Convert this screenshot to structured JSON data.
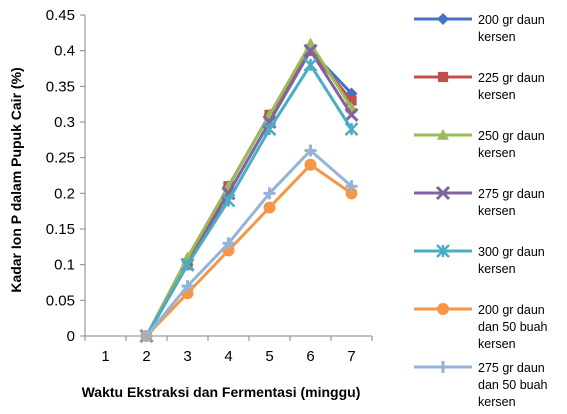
{
  "chart_data": {
    "type": "line",
    "xlabel": "Waktu Ekstraksi dan Fermentasi (minggu)",
    "ylabel": "Kadar Ion P dalam Pupuk Cair (%)",
    "x": [
      1,
      2,
      3,
      4,
      5,
      6,
      7
    ],
    "x_ticks": [
      "1",
      "2",
      "3",
      "4",
      "5",
      "6",
      "7"
    ],
    "ylim": [
      0,
      0.45
    ],
    "y_ticks": [
      "0",
      "0.05",
      "0.1",
      "0.15",
      "0.2",
      "0.25",
      "0.3",
      "0.35",
      "0.4",
      "0.45"
    ],
    "grid": false,
    "legend_position": "right",
    "series": [
      {
        "name": "200 gr daun kersen",
        "label_lines": [
          "200 gr daun",
          "kersen"
        ],
        "color": "#4472c4",
        "marker": "diamond",
        "x": [
          2,
          3,
          4,
          5,
          6,
          7
        ],
        "values": [
          0,
          0.1,
          0.21,
          0.31,
          0.4,
          0.34
        ]
      },
      {
        "name": "225 gr daun kersen",
        "label_lines": [
          "225 gr daun",
          "kersen"
        ],
        "color": "#c0504d",
        "marker": "square",
        "x": [
          2,
          3,
          4,
          5,
          6,
          7
        ],
        "values": [
          0,
          0.1,
          0.21,
          0.31,
          0.4,
          0.33
        ]
      },
      {
        "name": "250 gr daun kersen",
        "label_lines": [
          "250 gr daun",
          "kersen"
        ],
        "color": "#9bbb59",
        "marker": "triangle",
        "x": [
          2,
          3,
          4,
          5,
          6,
          7
        ],
        "values": [
          0,
          0.11,
          0.21,
          0.31,
          0.41,
          0.32
        ]
      },
      {
        "name": "275 gr daun kersen",
        "label_lines": [
          "275 gr daun",
          "kersen"
        ],
        "color": "#8064a2",
        "marker": "x",
        "x": [
          2,
          3,
          4,
          5,
          6,
          7
        ],
        "values": [
          0,
          0.1,
          0.2,
          0.3,
          0.4,
          0.31
        ]
      },
      {
        "name": "300 gr daun kersen",
        "label_lines": [
          "300 gr daun",
          "kersen"
        ],
        "color": "#4bacc6",
        "marker": "star",
        "x": [
          2,
          3,
          4,
          5,
          6,
          7
        ],
        "values": [
          0,
          0.1,
          0.19,
          0.29,
          0.38,
          0.29
        ]
      },
      {
        "name": "200 gr daun dan 50 buah kersen",
        "label_lines": [
          "200 gr daun",
          "dan 50 buah",
          "kersen"
        ],
        "color": "#f79646",
        "marker": "circle",
        "x": [
          2,
          3,
          4,
          5,
          6,
          7
        ],
        "values": [
          0,
          0.06,
          0.12,
          0.18,
          0.24,
          0.2
        ]
      },
      {
        "name": "275 gr daun dan 50 buah kersen",
        "label_lines": [
          "275 gr daun",
          "dan 50 buah",
          "kersen"
        ],
        "color": "#95b3d7",
        "marker": "plus",
        "x": [
          2,
          3,
          4,
          5,
          6,
          7
        ],
        "values": [
          0,
          0.07,
          0.13,
          0.2,
          0.26,
          0.21
        ]
      }
    ]
  }
}
